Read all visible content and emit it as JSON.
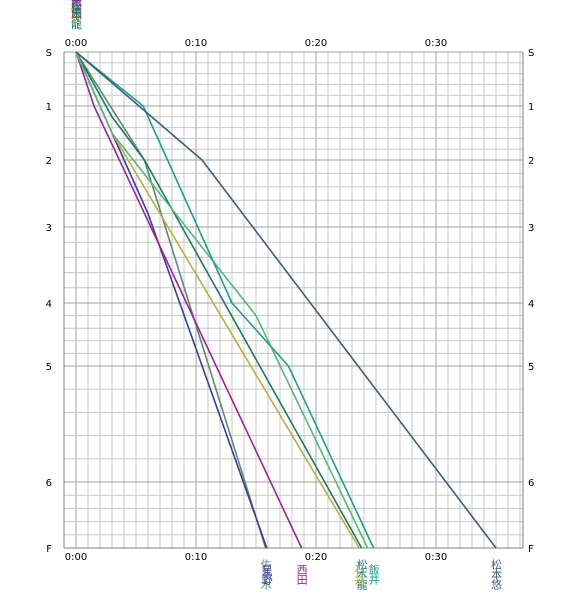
{
  "chart_data": {
    "type": "line",
    "title": "",
    "xlabel": "",
    "ylabel": "",
    "x_unit": "minutes",
    "xlim": [
      -1,
      38
    ],
    "x_ticks": [
      {
        "value": 0,
        "label": "0:00"
      },
      {
        "value": 10,
        "label": "0:10"
      },
      {
        "value": 20,
        "label": "0:20"
      },
      {
        "value": 30,
        "label": "0:30"
      }
    ],
    "stops": [
      {
        "label": "S",
        "position": 0
      },
      {
        "label": "1",
        "position": 1
      },
      {
        "label": "2",
        "position": 2
      },
      {
        "label": "3",
        "position": 3
      },
      {
        "label": "4",
        "position": 4
      },
      {
        "label": "5",
        "position": 5
      },
      {
        "label": "6",
        "position": 6
      },
      {
        "label": "F",
        "position": 7
      }
    ],
    "y_grid_step": 0.2,
    "x_minor_step": 1,
    "grid": true,
    "series": [
      {
        "name": "佐々木",
        "color": "#5a8a6e",
        "x": [
          0,
          5.7,
          15.8
        ],
        "y": [
          0,
          2.0,
          7
        ]
      },
      {
        "name": "星野",
        "color": "#3a3aa0",
        "x": [
          0,
          2.0,
          6.0,
          15.9
        ],
        "y": [
          0,
          1.0,
          2.8,
          7
        ]
      },
      {
        "name": "西田",
        "color": "#a020a0",
        "x": [
          0,
          1.5,
          18.8
        ],
        "y": [
          0,
          1.0,
          7
        ]
      },
      {
        "name": "松本龍",
        "color": "#1a7a6a",
        "x": [
          0,
          3.0,
          5.7,
          23.8
        ],
        "y": [
          0,
          1.2,
          2.0,
          7
        ]
      },
      {
        "name": "石井",
        "color": "#b4b43a",
        "x": [
          0,
          3.0,
          23.6
        ],
        "y": [
          0,
          1.5,
          7
        ]
      },
      {
        "name": "林",
        "color": "#55bb70",
        "x": [
          0,
          3.0,
          15.0,
          24.3
        ],
        "y": [
          0,
          1.5,
          4.2,
          7
        ]
      },
      {
        "name": "飯井",
        "color": "#16a090",
        "x": [
          0,
          5.6,
          13.0,
          17.7,
          24.8
        ],
        "y": [
          0,
          1.0,
          4.0,
          5.0,
          7
        ]
      },
      {
        "name": "松本悠",
        "color": "#3a5f7f",
        "x": [
          0,
          10.5,
          35.0
        ],
        "y": [
          0,
          2.0,
          7
        ]
      }
    ]
  },
  "bottom_labels": [
    {
      "series": 0,
      "text": "佐々木",
      "color": "#5a8a6e"
    },
    {
      "series": 1,
      "text": "星野",
      "color": "#3a3aa0"
    },
    {
      "series": 2,
      "text": "西田",
      "color": "#a020a0"
    },
    {
      "series": 3,
      "text": "松本龍",
      "color": "#1a7a6a"
    },
    {
      "series": 4,
      "text": "石井",
      "color": "#b4b43a"
    },
    {
      "series": 6,
      "text": "飯井",
      "color": "#16a090"
    },
    {
      "series": 7,
      "text": "松本悠",
      "color": "#3a5f7f"
    }
  ],
  "top_labels": [
    {
      "series": 7,
      "text": "松本悠",
      "color": "#3a5f7f"
    },
    {
      "series": 6,
      "text": "飯井",
      "color": "#16a090"
    },
    {
      "series": 2,
      "text": "西田",
      "color": "#a020a0"
    },
    {
      "series": 4,
      "text": "石井",
      "color": "#b4b43a"
    },
    {
      "series": 3,
      "text": "松本龍",
      "color": "#1a7a6a"
    }
  ],
  "colors": {
    "grid": "#c8c8c8",
    "grid_major": "#a0a0a0",
    "axis": "#808080"
  }
}
